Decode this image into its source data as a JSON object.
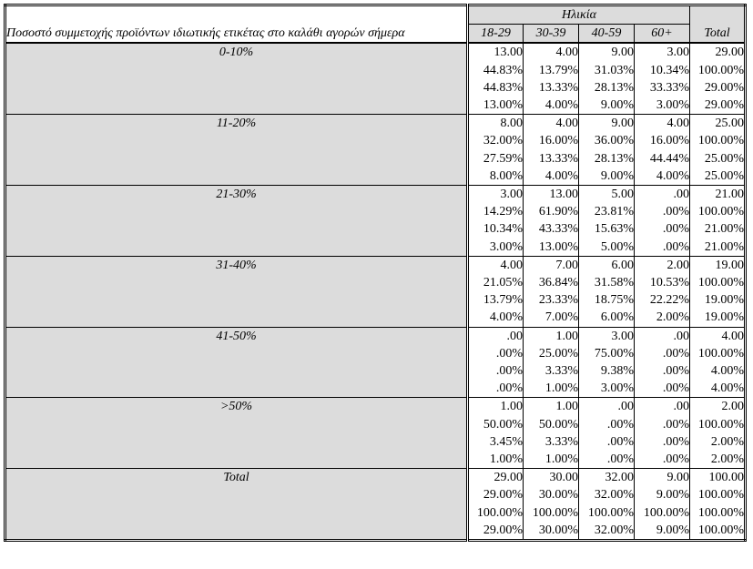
{
  "table": {
    "row_variable_label": "Ποσοστό συμμετοχής προϊόντων ιδιωτικής ετικέτας στο καλάθι αγορών σήμερα",
    "column_group_label": "Ηλικία",
    "columns": [
      "18-29",
      "30-39",
      "40-59",
      "60+"
    ],
    "total_label": "Total",
    "groups": [
      {
        "label": "0-10%",
        "rows": [
          [
            "13.00",
            "4.00",
            "9.00",
            "3.00",
            "29.00"
          ],
          [
            "44.83%",
            "13.79%",
            "31.03%",
            "10.34%",
            "100.00%"
          ],
          [
            "44.83%",
            "13.33%",
            "28.13%",
            "33.33%",
            "29.00%"
          ],
          [
            "13.00%",
            "4.00%",
            "9.00%",
            "3.00%",
            "29.00%"
          ]
        ]
      },
      {
        "label": "11-20%",
        "rows": [
          [
            "8.00",
            "4.00",
            "9.00",
            "4.00",
            "25.00"
          ],
          [
            "32.00%",
            "16.00%",
            "36.00%",
            "16.00%",
            "100.00%"
          ],
          [
            "27.59%",
            "13.33%",
            "28.13%",
            "44.44%",
            "25.00%"
          ],
          [
            "8.00%",
            "4.00%",
            "9.00%",
            "4.00%",
            "25.00%"
          ]
        ]
      },
      {
        "label": "21-30%",
        "rows": [
          [
            "3.00",
            "13.00",
            "5.00",
            ".00",
            "21.00"
          ],
          [
            "14.29%",
            "61.90%",
            "23.81%",
            ".00%",
            "100.00%"
          ],
          [
            "10.34%",
            "43.33%",
            "15.63%",
            ".00%",
            "21.00%"
          ],
          [
            "3.00%",
            "13.00%",
            "5.00%",
            ".00%",
            "21.00%"
          ]
        ]
      },
      {
        "label": "31-40%",
        "rows": [
          [
            "4.00",
            "7.00",
            "6.00",
            "2.00",
            "19.00"
          ],
          [
            "21.05%",
            "36.84%",
            "31.58%",
            "10.53%",
            "100.00%"
          ],
          [
            "13.79%",
            "23.33%",
            "18.75%",
            "22.22%",
            "19.00%"
          ],
          [
            "4.00%",
            "7.00%",
            "6.00%",
            "2.00%",
            "19.00%"
          ]
        ]
      },
      {
        "label": "41-50%",
        "rows": [
          [
            ".00",
            "1.00",
            "3.00",
            ".00",
            "4.00"
          ],
          [
            ".00%",
            "25.00%",
            "75.00%",
            ".00%",
            "100.00%"
          ],
          [
            ".00%",
            "3.33%",
            "9.38%",
            ".00%",
            "4.00%"
          ],
          [
            ".00%",
            "1.00%",
            "3.00%",
            ".00%",
            "4.00%"
          ]
        ]
      },
      {
        "label": ">50%",
        "rows": [
          [
            "1.00",
            "1.00",
            ".00",
            ".00",
            "2.00"
          ],
          [
            "50.00%",
            "50.00%",
            ".00%",
            ".00%",
            "100.00%"
          ],
          [
            "3.45%",
            "3.33%",
            ".00%",
            ".00%",
            "2.00%"
          ],
          [
            "1.00%",
            "1.00%",
            ".00%",
            ".00%",
            "2.00%"
          ]
        ]
      },
      {
        "label": "Total",
        "rows": [
          [
            "29.00",
            "30.00",
            "32.00",
            "9.00",
            "100.00"
          ],
          [
            "29.00%",
            "30.00%",
            "32.00%",
            "9.00%",
            "100.00%"
          ],
          [
            "100.00%",
            "100.00%",
            "100.00%",
            "100.00%",
            "100.00%"
          ],
          [
            "29.00%",
            "30.00%",
            "32.00%",
            "9.00%",
            "100.00%"
          ]
        ]
      }
    ]
  }
}
